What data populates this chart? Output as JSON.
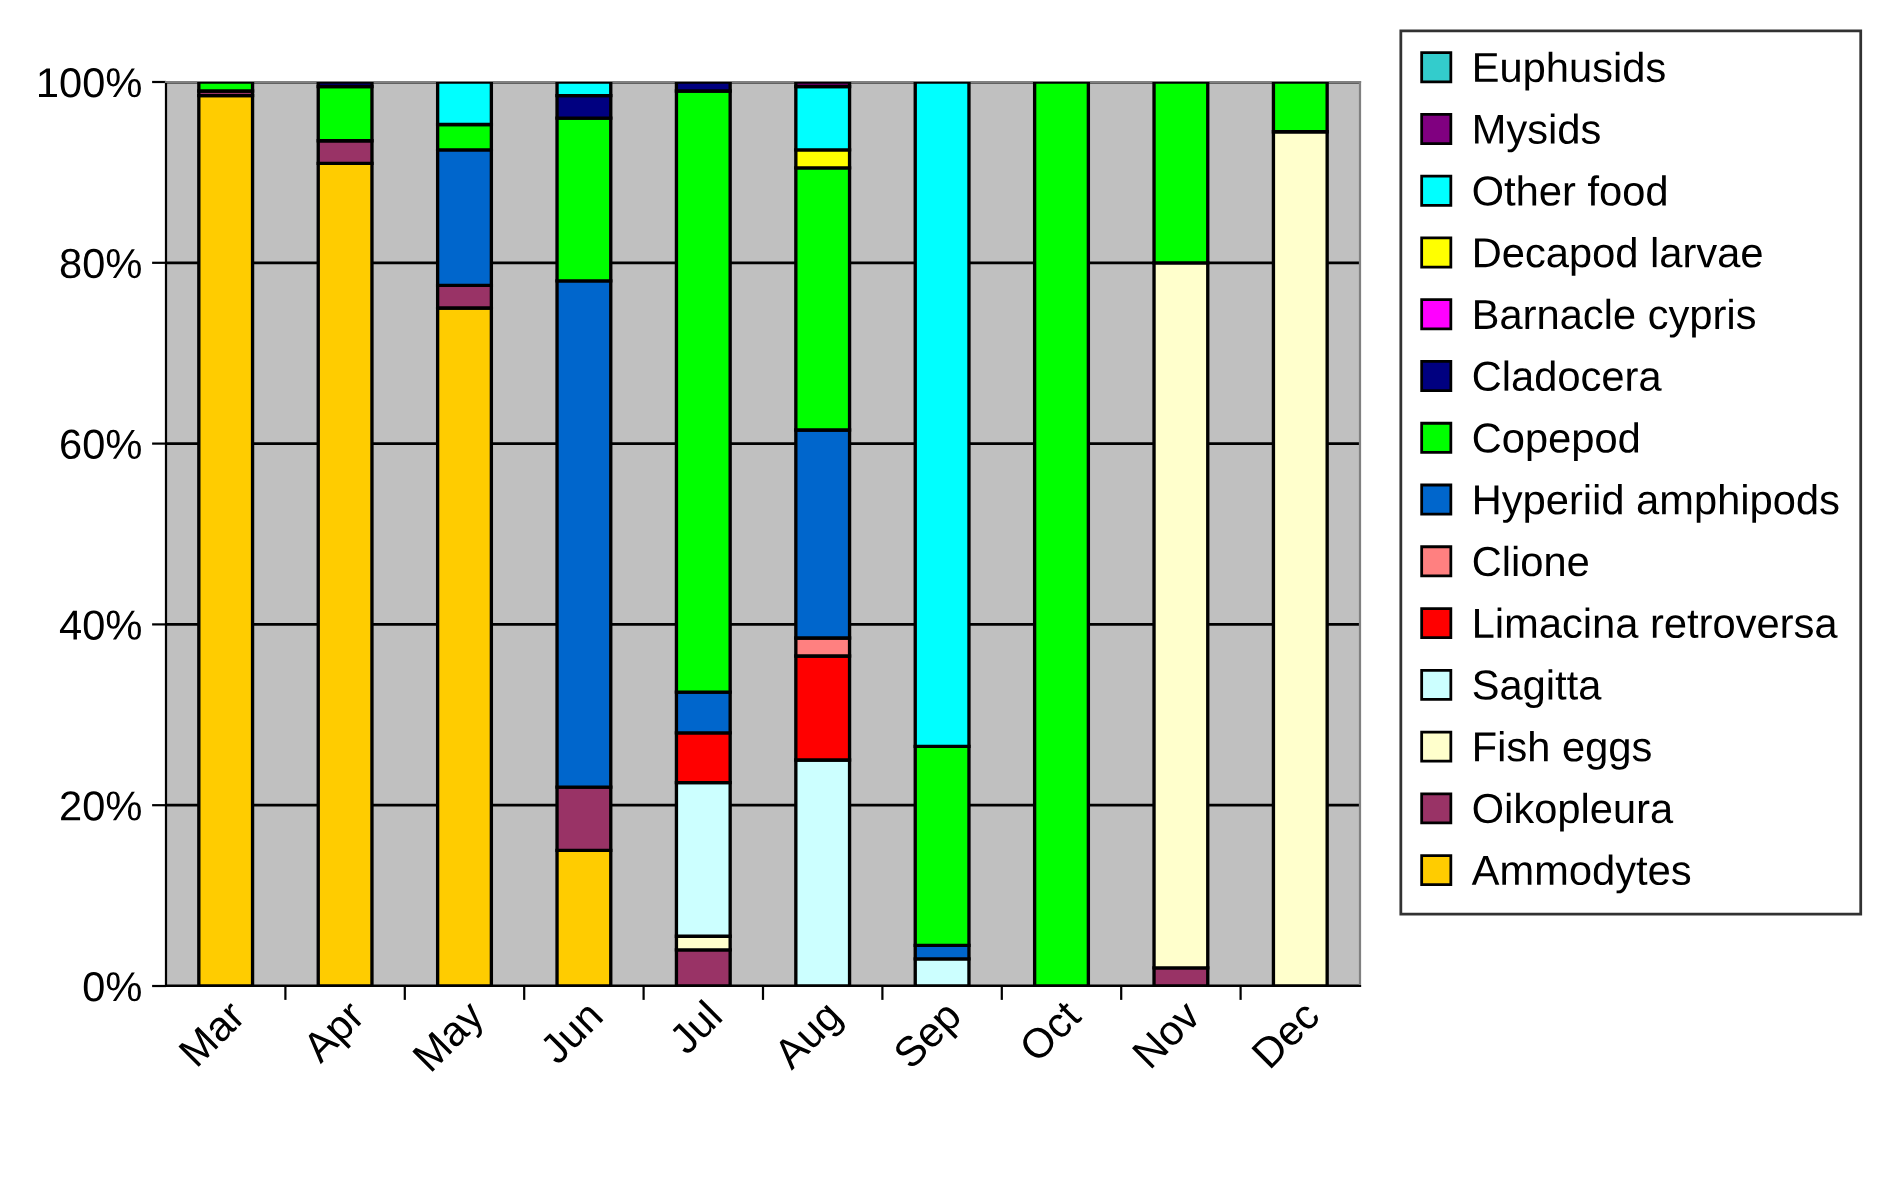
{
  "chart_data": {
    "type": "bar",
    "stacked": true,
    "categories": [
      "Mar",
      "Apr",
      "May",
      "Jun",
      "Jul",
      "Aug",
      "Sep",
      "Oct",
      "Nov",
      "Dec"
    ],
    "series": [
      {
        "name": "Ammodytes",
        "color": "#ffcc00",
        "values": [
          98.5,
          91,
          75,
          15,
          0,
          0,
          0,
          0,
          0,
          0
        ]
      },
      {
        "name": "Oikopleura",
        "color": "#993366",
        "values": [
          0.5,
          2.5,
          2.5,
          7,
          4,
          null,
          0,
          null,
          2,
          0
        ]
      },
      {
        "name": "Fish eggs",
        "color": "#ffffcc",
        "values": [
          0,
          0,
          0,
          0,
          1.5,
          0,
          0,
          0,
          78,
          94.5
        ]
      },
      {
        "name": "Sagitta",
        "color": "#ccffff",
        "values": [
          0,
          0,
          0,
          0,
          17,
          25,
          3,
          0,
          0,
          0
        ]
      },
      {
        "name": "Limacina retroversa",
        "color": "#ff0000",
        "values": [
          0,
          0,
          0,
          0,
          5.5,
          11.5,
          0,
          0,
          0,
          0
        ]
      },
      {
        "name": "Clione",
        "color": "#ff8080",
        "values": [
          0,
          0,
          0,
          0,
          0,
          2,
          0,
          0,
          0,
          0
        ]
      },
      {
        "name": "Hyperiid amphipods",
        "color": "#0066cc",
        "values": [
          0,
          0,
          15,
          56,
          4.5,
          23,
          1.5,
          0,
          0,
          0
        ]
      },
      {
        "name": "Copepod",
        "color": "#00ff00",
        "values": [
          1,
          6,
          2.8,
          18,
          66.5,
          29,
          22,
          100,
          20,
          5.5
        ]
      },
      {
        "name": "Cladocera",
        "color": "#000080",
        "values": [
          0,
          0.5,
          0,
          2.5,
          1,
          0,
          0,
          0,
          0,
          0
        ]
      },
      {
        "name": "Barnacle cypris",
        "color": "#ff00ff",
        "values": [
          0,
          0,
          0,
          0,
          0,
          0,
          0,
          0,
          0,
          0
        ]
      },
      {
        "name": "Decapod larvae",
        "color": "#ffff00",
        "values": [
          0,
          0,
          0,
          0,
          0,
          2,
          0,
          0,
          0,
          0
        ]
      },
      {
        "name": "Other food",
        "color": "#00ffff",
        "values": [
          0,
          0,
          4.7,
          1.5,
          0,
          7,
          73.5,
          0,
          0,
          0
        ]
      },
      {
        "name": "Mysids",
        "color": "#800080",
        "values": [
          0,
          0,
          0,
          0,
          0,
          0.5,
          0,
          0,
          0,
          0
        ]
      },
      {
        "name": "Euphusids",
        "color": "#33cccc",
        "values": [
          0,
          0,
          0,
          0,
          0,
          0,
          0,
          0,
          0,
          0
        ]
      }
    ],
    "ylim": [
      0,
      100
    ],
    "yticks": [
      {
        "value": 0,
        "label": "0%"
      },
      {
        "value": 20,
        "label": "20%"
      },
      {
        "value": 40,
        "label": "40%"
      },
      {
        "value": 60,
        "label": "60%"
      },
      {
        "value": 80,
        "label": "80%"
      },
      {
        "value": 100,
        "label": "100%"
      }
    ],
    "grid": "y",
    "legend": "right"
  }
}
